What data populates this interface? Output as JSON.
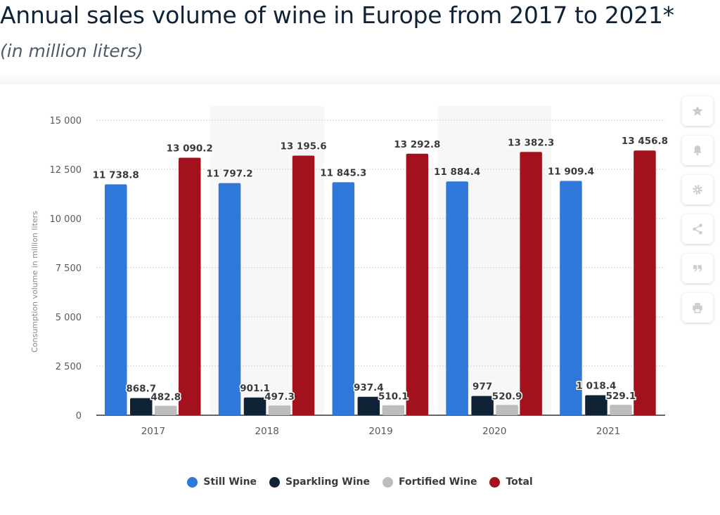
{
  "header": {
    "title": "Annual sales volume of wine in Europe from 2017 to 2021*",
    "subtitle": "(in million liters)"
  },
  "toolbar": {
    "icons": [
      "star-icon",
      "bell-icon",
      "gear-icon",
      "share-icon",
      "quote-icon",
      "print-icon"
    ]
  },
  "chart_data": {
    "type": "bar",
    "ylabel": "Consumption volume in million liters",
    "xlabel": "",
    "ylim": [
      0,
      15000
    ],
    "yticks": [
      0,
      2500,
      5000,
      7500,
      10000,
      12500,
      15000
    ],
    "ytick_labels": [
      "0",
      "2 500",
      "5 000",
      "7 500",
      "10 000",
      "12 500",
      "15 000"
    ],
    "grid": true,
    "legend_position": "bottom",
    "categories": [
      "2017",
      "2018",
      "2019",
      "2020",
      "2021"
    ],
    "series": [
      {
        "name": "Still Wine",
        "color": "#2f77d8",
        "values": [
          11738.8,
          11797.2,
          11845.3,
          11884.4,
          11909.4
        ],
        "labels": [
          "11 738.8",
          "11 797.2",
          "11 845.3",
          "11 884.4",
          "11 909.4"
        ]
      },
      {
        "name": "Sparkling Wine",
        "color": "#0f2236",
        "values": [
          868.7,
          901.1,
          937.4,
          977,
          1018.4
        ],
        "labels": [
          "868.7",
          "901.1",
          "937.4",
          "977",
          "1 018.4"
        ]
      },
      {
        "name": "Fortified Wine",
        "color": "#bdbdbd",
        "values": [
          482.8,
          497.3,
          510.1,
          520.9,
          529.1
        ],
        "labels": [
          "482.8",
          "497.3",
          "510.1",
          "520.9",
          "529.1"
        ]
      },
      {
        "name": "Total",
        "color": "#a3111c",
        "values": [
          13090.2,
          13195.6,
          13292.8,
          13382.3,
          13456.8
        ],
        "labels": [
          "13 090.2",
          "13 195.6",
          "13 292.8",
          "13 382.3",
          "13 456.8"
        ]
      }
    ]
  }
}
